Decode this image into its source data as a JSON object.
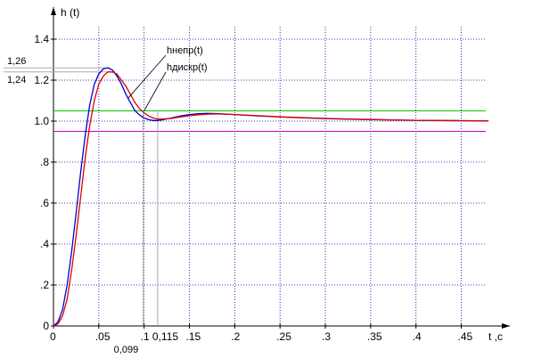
{
  "chart_data": {
    "type": "line",
    "xlabel": "t ,c",
    "ylabel": "h (t)",
    "xlim": [
      0,
      0.48
    ],
    "ylim": [
      0,
      1.5
    ],
    "x_ticks": [
      "0",
      ".05",
      ".1",
      ".15",
      ".2",
      ".25",
      ".3",
      ".35",
      ".4",
      ".45"
    ],
    "y_ticks": [
      "0",
      ".2",
      ".4",
      ".6",
      ".8",
      "1.0",
      "1.2",
      "1.4"
    ],
    "grid": true,
    "annotations": {
      "y_1_26": "1,26",
      "y_1_24": "1,24",
      "x_0_099": "0,099",
      "x_0_115": "0,115"
    },
    "hlines": [
      {
        "y": 1.05,
        "color": "#00cc00"
      },
      {
        "y": 0.95,
        "color": "#cc00cc"
      }
    ],
    "series": [
      {
        "name": "hнепр(t)",
        "color": "#0000cc",
        "x": [
          0,
          0.005,
          0.01,
          0.015,
          0.02,
          0.025,
          0.03,
          0.035,
          0.04,
          0.045,
          0.05,
          0.055,
          0.06,
          0.065,
          0.07,
          0.075,
          0.08,
          0.085,
          0.09,
          0.095,
          0.1,
          0.105,
          0.11,
          0.115,
          0.12,
          0.13,
          0.14,
          0.15,
          0.16,
          0.17,
          0.18,
          0.2,
          0.22,
          0.25,
          0.3,
          0.35,
          0.4,
          0.45,
          0.48
        ],
        "values": [
          0,
          0.02,
          0.08,
          0.2,
          0.36,
          0.55,
          0.75,
          0.93,
          1.08,
          1.18,
          1.23,
          1.255,
          1.26,
          1.25,
          1.22,
          1.18,
          1.13,
          1.09,
          1.05,
          1.03,
          1.015,
          1.007,
          1.003,
          1.003,
          1.006,
          1.015,
          1.025,
          1.032,
          1.036,
          1.038,
          1.037,
          1.032,
          1.027,
          1.02,
          1.012,
          1.007,
          1.004,
          1.002,
          1.001
        ]
      },
      {
        "name": "hдискр(t)",
        "color": "#dd0000",
        "x": [
          0,
          0.005,
          0.01,
          0.015,
          0.02,
          0.025,
          0.03,
          0.035,
          0.04,
          0.045,
          0.05,
          0.055,
          0.06,
          0.065,
          0.07,
          0.075,
          0.08,
          0.085,
          0.09,
          0.095,
          0.1,
          0.105,
          0.11,
          0.115,
          0.12,
          0.13,
          0.14,
          0.15,
          0.16,
          0.17,
          0.18,
          0.2,
          0.22,
          0.25,
          0.3,
          0.35,
          0.4,
          0.45,
          0.48
        ],
        "values": [
          0,
          0.01,
          0.05,
          0.13,
          0.27,
          0.44,
          0.63,
          0.82,
          0.98,
          1.1,
          1.18,
          1.22,
          1.24,
          1.24,
          1.23,
          1.2,
          1.17,
          1.13,
          1.09,
          1.06,
          1.04,
          1.025,
          1.015,
          1.01,
          1.01,
          1.013,
          1.02,
          1.026,
          1.031,
          1.034,
          1.035,
          1.032,
          1.028,
          1.021,
          1.013,
          1.008,
          1.004,
          1.002,
          1.001
        ]
      }
    ]
  }
}
